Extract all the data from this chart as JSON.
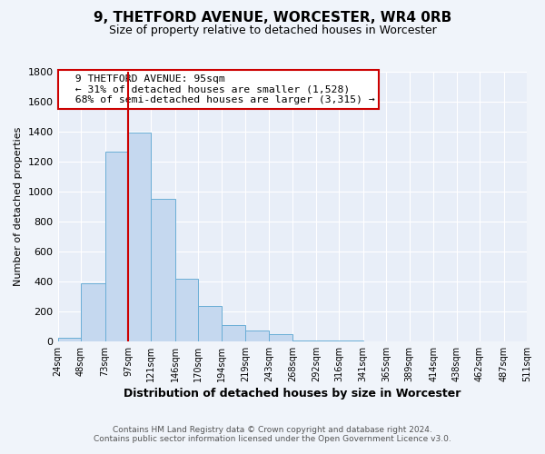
{
  "title": "9, THETFORD AVENUE, WORCESTER, WR4 0RB",
  "subtitle": "Size of property relative to detached houses in Worcester",
  "xlabel": "Distribution of detached houses by size in Worcester",
  "ylabel": "Number of detached properties",
  "bar_color": "#c5d8ef",
  "bar_edgecolor": "#6aaed6",
  "vline_x": 97,
  "vline_color": "#cc0000",
  "ylim": [
    0,
    1800
  ],
  "yticks": [
    0,
    200,
    400,
    600,
    800,
    1000,
    1200,
    1400,
    1600,
    1800
  ],
  "annotation_title": "9 THETFORD AVENUE: 95sqm",
  "annotation_line1": "← 31% of detached houses are smaller (1,528)",
  "annotation_line2": "68% of semi-detached houses are larger (3,315) →",
  "annotation_box_color": "#ffffff",
  "annotation_box_edgecolor": "#cc0000",
  "footer1": "Contains HM Land Registry data © Crown copyright and database right 2024.",
  "footer2": "Contains public sector information licensed under the Open Government Licence v3.0.",
  "bg_color": "#f0f4fa",
  "plot_bg_color": "#e8eef8",
  "bin_edges": [
    24,
    48,
    73,
    97,
    121,
    146,
    170,
    194,
    219,
    243,
    268,
    292,
    316,
    341,
    365,
    389,
    414,
    438,
    462,
    487,
    511
  ],
  "all_bar_values": [
    25,
    390,
    1265,
    1395,
    950,
    415,
    235,
    110,
    70,
    50,
    5,
    5,
    5,
    0,
    0,
    0,
    0,
    0,
    0,
    0
  ]
}
